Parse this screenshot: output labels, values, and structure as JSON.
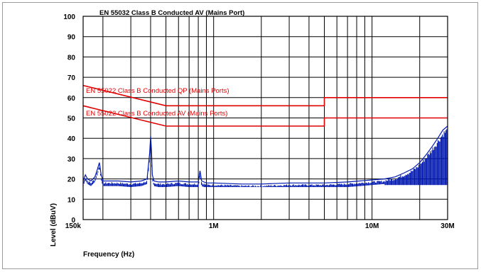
{
  "chart_data": {
    "type": "line",
    "title": "EN 55032 Class B Conducted AV (Mains Port)",
    "xlabel": "Frequency (Hz)",
    "ylabel": "Level (dBuV)",
    "xscale": "log",
    "xlim": [
      150000,
      30000000
    ],
    "ylim": [
      0,
      100
    ],
    "yticks": [
      0,
      10,
      20,
      30,
      40,
      50,
      60,
      70,
      80,
      90,
      100
    ],
    "xtick_labels": [
      {
        "x": 150000,
        "label": "150k"
      },
      {
        "x": 1000000,
        "label": "1M"
      },
      {
        "x": 10000000,
        "label": "10M"
      },
      {
        "x": 30000000,
        "label": "30M"
      }
    ],
    "grid": true,
    "series": [
      {
        "name": "EN 55022 Class B Conducted QP (Mains Ports)",
        "color": "#e00000",
        "x": [
          150000,
          500000,
          500000,
          5000000,
          5000000,
          30000000
        ],
        "y": [
          66,
          56,
          56,
          56,
          60,
          60
        ]
      },
      {
        "name": "EN 55022 Class B Conducted AV (Mains Ports)",
        "color": "#e00000",
        "x": [
          150000,
          500000,
          500000,
          5000000,
          5000000,
          30000000
        ],
        "y": [
          56,
          46,
          46,
          46,
          50,
          50
        ]
      },
      {
        "color": "#0018b0",
        "x": [
          150000,
          155000,
          160000,
          168000,
          178000,
          185000,
          190000,
          195000,
          200000,
          210000,
          250000,
          300000,
          350000,
          380000,
          395000,
          400000,
          405000,
          410000,
          420000,
          450000,
          500000,
          600000,
          700000,
          800000,
          820000,
          840000,
          900000,
          1000000,
          1500000,
          2000000,
          3000000,
          5000000,
          7000000,
          10000000,
          12000000,
          14000000,
          16000000,
          18000000,
          20000000,
          22000000,
          24000000,
          26000000,
          28000000,
          30000000
        ],
        "y": [
          19,
          22,
          20,
          19,
          21,
          25,
          28,
          22,
          19,
          19,
          19,
          18.5,
          19,
          20,
          33,
          41,
          34,
          22,
          19,
          18.5,
          18.5,
          19,
          18.5,
          18.5,
          24,
          19,
          18,
          18,
          17.5,
          17.5,
          18,
          18,
          18.5,
          19.5,
          20,
          21,
          23,
          25,
          28,
          32,
          36,
          40,
          44,
          46
        ]
      }
    ]
  },
  "legend": {
    "qp_label": "EN 55022 Class B Conducted QP (Mains Ports)",
    "av_label": "EN 55022 Class B Conducted AV (Mains Ports)"
  }
}
